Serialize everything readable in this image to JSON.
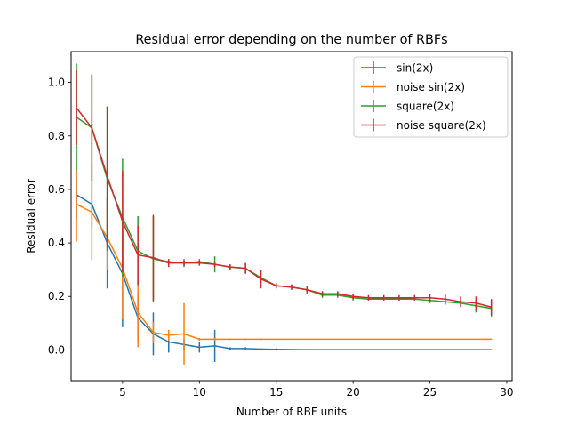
{
  "chart_data": {
    "type": "line",
    "title": "Residual error depending on the number of RBFs",
    "xlabel": "Number of RBF units",
    "ylabel": "Residual error",
    "xlim": [
      1.65,
      30.35
    ],
    "ylim": [
      -0.115,
      1.115
    ],
    "xticks": [
      5,
      10,
      15,
      20,
      25,
      30
    ],
    "xtick_labels": [
      "5",
      "10",
      "15",
      "20",
      "25",
      "30"
    ],
    "yticks": [
      0.0,
      0.2,
      0.4,
      0.6,
      0.8,
      1.0
    ],
    "ytick_labels": [
      "0.0",
      "0.2",
      "0.4",
      "0.6",
      "0.8",
      "1.0"
    ],
    "grid": false,
    "legend_position": "top-right",
    "x": [
      2,
      3,
      4,
      5,
      6,
      7,
      8,
      9,
      10,
      11,
      12,
      13,
      14,
      15,
      16,
      17,
      18,
      19,
      20,
      21,
      22,
      23,
      24,
      25,
      26,
      27,
      28,
      29
    ],
    "series": [
      {
        "name": "sin(2x)",
        "color": "#1f77b4",
        "values": [
          0.58,
          0.545,
          0.4,
          0.285,
          0.12,
          0.06,
          0.03,
          0.02,
          0.01,
          0.015,
          0.005,
          0.005,
          0.003,
          0.002,
          0.0015,
          0.001,
          0.001,
          0.001,
          0.001,
          0.001,
          0.001,
          0.001,
          0.001,
          0.001,
          0.001,
          0.001,
          0.001,
          0.001
        ],
        "errors": [
          0.09,
          0.09,
          0.17,
          0.2,
          0.09,
          0.08,
          0.04,
          0.02,
          0.02,
          0.06,
          0.005,
          0.005,
          0.003,
          0.005,
          0.002,
          0.001,
          0.001,
          0.001,
          0.001,
          0.001,
          0.001,
          0.001,
          0.001,
          0.001,
          0.001,
          0.001,
          0.001,
          0.001
        ]
      },
      {
        "name": "noise sin(2x)",
        "color": "#ff7f0e",
        "values": [
          0.545,
          0.515,
          0.42,
          0.305,
          0.14,
          0.065,
          0.055,
          0.06,
          0.04,
          0.04,
          0.04,
          0.04,
          0.04,
          0.04,
          0.04,
          0.04,
          0.04,
          0.04,
          0.04,
          0.04,
          0.04,
          0.04,
          0.04,
          0.04,
          0.04,
          0.04,
          0.04,
          0.04
        ],
        "errors": [
          0.14,
          0.18,
          0.12,
          0.19,
          0.13,
          0.04,
          0.02,
          0.115,
          0.005,
          0.005,
          0.003,
          0.003,
          0.003,
          0.002,
          0.002,
          0.002,
          0.002,
          0.002,
          0.002,
          0.002,
          0.002,
          0.002,
          0.002,
          0.002,
          0.002,
          0.002,
          0.002,
          0.002
        ]
      },
      {
        "name": "square(2x)",
        "color": "#2ca02c",
        "values": [
          0.87,
          0.83,
          0.64,
          0.495,
          0.37,
          0.34,
          0.33,
          0.325,
          0.33,
          0.32,
          0.31,
          0.305,
          0.27,
          0.24,
          0.235,
          0.225,
          0.205,
          0.205,
          0.195,
          0.19,
          0.19,
          0.19,
          0.19,
          0.185,
          0.18,
          0.175,
          0.165,
          0.155
        ],
        "errors": [
          0.2,
          0.2,
          0.27,
          0.22,
          0.13,
          0.16,
          0.01,
          0.015,
          0.01,
          0.03,
          0.01,
          0.02,
          0.03,
          0.01,
          0.01,
          0.015,
          0.01,
          0.01,
          0.01,
          0.005,
          0.005,
          0.005,
          0.005,
          0.01,
          0.01,
          0.01,
          0.025,
          0.03
        ]
      },
      {
        "name": "noise square(2x)",
        "color": "#d62728",
        "values": [
          0.905,
          0.83,
          0.65,
          0.48,
          0.355,
          0.345,
          0.325,
          0.325,
          0.325,
          0.32,
          0.31,
          0.305,
          0.265,
          0.24,
          0.235,
          0.225,
          0.21,
          0.21,
          0.2,
          0.195,
          0.195,
          0.195,
          0.195,
          0.195,
          0.19,
          0.18,
          0.175,
          0.16
        ],
        "errors": [
          0.14,
          0.2,
          0.26,
          0.19,
          0.11,
          0.16,
          0.015,
          0.01,
          0.01,
          0.01,
          0.01,
          0.02,
          0.035,
          0.01,
          0.01,
          0.01,
          0.01,
          0.01,
          0.01,
          0.01,
          0.01,
          0.01,
          0.01,
          0.015,
          0.02,
          0.02,
          0.025,
          0.03
        ]
      }
    ]
  }
}
